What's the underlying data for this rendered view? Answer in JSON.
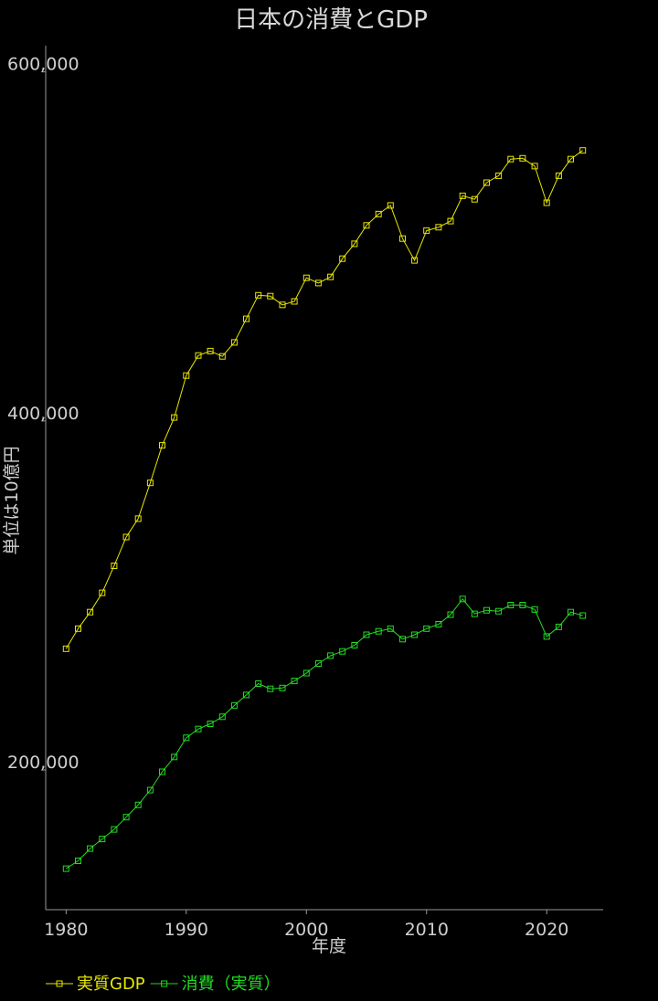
{
  "chart_data": {
    "type": "line",
    "title": "日本の消費とGDP",
    "xlabel": "年度",
    "ylabel": "単位は10億円",
    "xlim": [
      1978.3,
      2024.7
    ],
    "ylim": [
      120000,
      615000
    ],
    "xticks": [
      1980,
      1990,
      2000,
      2010,
      2020
    ],
    "xtick_labels": [
      "1980",
      "1990",
      "2000",
      "2010",
      "2020"
    ],
    "yticks": [
      200000,
      400000,
      600000
    ],
    "ytick_labels": [
      "200,000",
      "400,000",
      "600,000"
    ],
    "grid": false,
    "legend_position": "bottom-left",
    "x": [
      1980,
      1981,
      1982,
      1983,
      1984,
      1985,
      1986,
      1987,
      1988,
      1989,
      1990,
      1991,
      1992,
      1993,
      1994,
      1995,
      1996,
      1997,
      1998,
      1999,
      2000,
      2001,
      2002,
      2003,
      2004,
      2005,
      2006,
      2007,
      2008,
      2009,
      2010,
      2011,
      2012,
      2013,
      2014,
      2015,
      2016,
      2017,
      2018,
      2019,
      2020,
      2021,
      2022,
      2023
    ],
    "series": [
      {
        "name": "実質GDP",
        "color": "#e8e800",
        "marker": "square",
        "values": [
          269500,
          281000,
          290500,
          301500,
          317000,
          333500,
          344000,
          364500,
          386000,
          402000,
          426000,
          437500,
          440000,
          437000,
          445000,
          458500,
          472000,
          471500,
          466500,
          468500,
          482000,
          479000,
          482500,
          493000,
          501500,
          512000,
          518500,
          523500,
          504500,
          492000,
          509000,
          511000,
          514500,
          529000,
          527000,
          536500,
          540500,
          550000,
          550500,
          546000,
          525000,
          540500,
          550000,
          555000
        ]
      },
      {
        "name": "消費（実質）",
        "color": "#22dd22",
        "marker": "square",
        "values": [
          143500,
          148000,
          155000,
          160500,
          166000,
          173000,
          180000,
          188500,
          199000,
          207500,
          218500,
          223500,
          226500,
          230500,
          237000,
          243000,
          249500,
          246500,
          247000,
          251000,
          255500,
          261000,
          265500,
          268000,
          271500,
          277500,
          279500,
          281000,
          275000,
          277500,
          281000,
          283500,
          289000,
          298000,
          289500,
          291500,
          291000,
          294500,
          294500,
          292000,
          276500,
          282000,
          290500,
          288500
        ]
      }
    ]
  }
}
